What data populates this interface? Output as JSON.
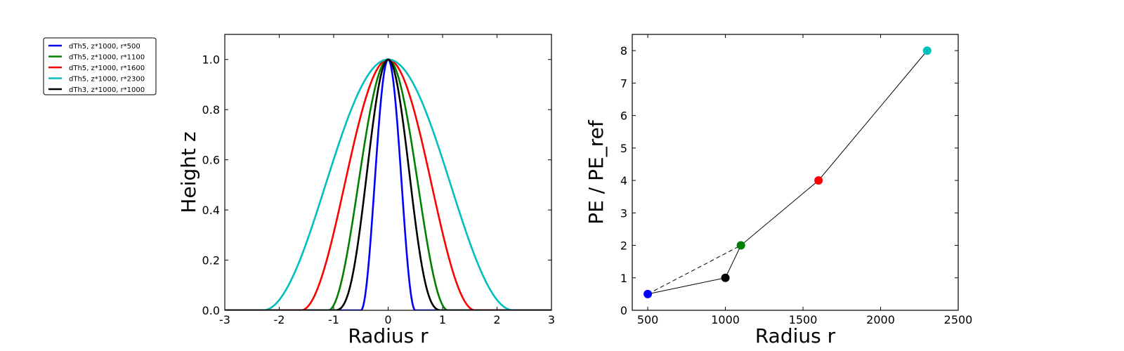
{
  "chart_data": [
    {
      "type": "line",
      "xlabel": "Radius r",
      "ylabel": "Height z",
      "xlim": [
        -3,
        3
      ],
      "ylim": [
        0,
        1.1
      ],
      "xticks": [
        -3,
        -2,
        -1,
        0,
        1,
        2,
        3
      ],
      "yticks": [
        0.0,
        0.2,
        0.4,
        0.6,
        0.8,
        1.0
      ],
      "xtick_labels": [
        "-3",
        "-2",
        "-1",
        "0",
        "1",
        "2",
        "3"
      ],
      "ytick_labels": [
        "0.0",
        "0.2",
        "0.4",
        "0.6",
        "0.8",
        "1.0"
      ],
      "grid": false,
      "legend_placement": "outside-left",
      "series": [
        {
          "name": "dTh5, z*1000, r*500",
          "color": "#0000ff",
          "halfwidth": 0.5,
          "power": 2
        },
        {
          "name": "dTh5, z*1000, r*1100",
          "color": "#008000",
          "halfwidth": 1.1,
          "power": 2
        },
        {
          "name": "dTh5, z*1000, r*1600",
          "color": "#ff0000",
          "halfwidth": 1.6,
          "power": 2
        },
        {
          "name": "dTh5, z*1000, r*2300",
          "color": "#00bfbf",
          "halfwidth": 2.3,
          "power": 2
        },
        {
          "name": "dTh3, z*1000, r*1000",
          "color": "#000000",
          "halfwidth": 1.0,
          "power": 3
        }
      ]
    },
    {
      "type": "scatter",
      "xlabel": "Radius r",
      "ylabel": "PE / PE_ref",
      "xlim": [
        400,
        2500
      ],
      "ylim": [
        0,
        8.5
      ],
      "xticks": [
        500,
        1000,
        1500,
        2000,
        2500
      ],
      "yticks": [
        0,
        1,
        2,
        3,
        4,
        5,
        6,
        7,
        8
      ],
      "xtick_labels": [
        "500",
        "1000",
        "1500",
        "2000",
        "2500"
      ],
      "ytick_labels": [
        "0",
        "1",
        "2",
        "3",
        "4",
        "5",
        "6",
        "7",
        "8"
      ],
      "grid": false,
      "points": [
        {
          "x": 500,
          "y": 0.5,
          "color": "#0000ff"
        },
        {
          "x": 1000,
          "y": 1.0,
          "color": "#000000"
        },
        {
          "x": 1100,
          "y": 2.0,
          "color": "#008000"
        },
        {
          "x": 1600,
          "y": 4.0,
          "color": "#ff0000"
        },
        {
          "x": 2300,
          "y": 8.0,
          "color": "#00bfbf"
        }
      ],
      "lines": [
        {
          "style": "solid",
          "x": [
            500,
            1000,
            1100,
            1600,
            2300
          ],
          "y": [
            0.5,
            1.0,
            2.0,
            4.0,
            8.0
          ]
        },
        {
          "style": "dashed",
          "x": [
            500,
            1100
          ],
          "y": [
            0.5,
            2.0
          ]
        }
      ]
    }
  ]
}
